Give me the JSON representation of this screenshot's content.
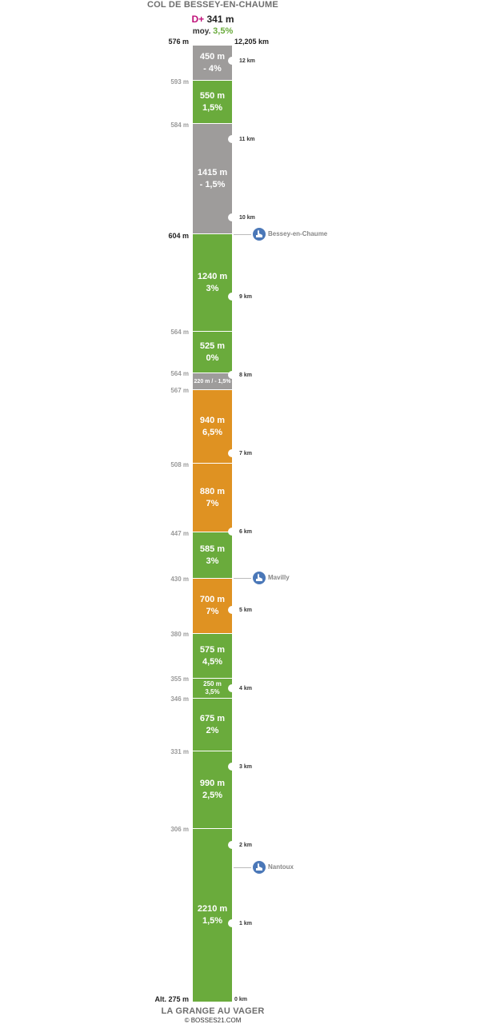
{
  "header": {
    "title": "COL DE BESSEY-EN-CHAUME",
    "dplus_prefix": "D+",
    "dplus_value": "341 m",
    "avg_prefix": "moy.",
    "avg_value": "3,5%",
    "top_altitude": "576 m",
    "total_distance": "12,205 km"
  },
  "footer": {
    "title": "LA GRANGE AU VAGER",
    "copyright": "© BOSSES21.COM",
    "start_altitude": "Alt. 275 m"
  },
  "colors": {
    "green": "#6aab3c",
    "orange": "#df9222",
    "gray": "#9e9c9b",
    "accent_magenta": "#c0127a",
    "village_blue": "#4b78b8"
  },
  "segments": [
    {
      "label": "450 m\n- 4%",
      "color": "gray",
      "size": "normal"
    },
    {
      "label": "550 m\n1,5%",
      "color": "green",
      "size": "normal"
    },
    {
      "label": "1415 m\n- 1,5%",
      "color": "gray",
      "size": "normal"
    },
    {
      "label": "1240 m\n3%",
      "color": "green",
      "size": "normal"
    },
    {
      "label": "525 m\n0%",
      "color": "green",
      "size": "normal"
    },
    {
      "label": "220 m / - 1,5%",
      "color": "gray",
      "size": "tiny"
    },
    {
      "label": "940 m\n6,5%",
      "color": "orange",
      "size": "normal"
    },
    {
      "label": "880 m\n7%",
      "color": "orange",
      "size": "normal"
    },
    {
      "label": "585 m\n3%",
      "color": "green",
      "size": "normal"
    },
    {
      "label": "700 m\n7%",
      "color": "orange",
      "size": "normal"
    },
    {
      "label": "575 m\n4,5%",
      "color": "green",
      "size": "normal"
    },
    {
      "label": "250 m\n3,5%",
      "color": "green",
      "size": "small"
    },
    {
      "label": "675 m\n2%",
      "color": "green",
      "size": "normal"
    },
    {
      "label": "990 m\n2,5%",
      "color": "green",
      "size": "normal"
    },
    {
      "label": "2210 m\n1,5%",
      "color": "green",
      "size": "normal"
    }
  ],
  "altitudes": [
    "593 m",
    "584 m",
    "604 m",
    "564 m",
    "564 m",
    "567 m",
    "508 m",
    "447 m",
    "430 m",
    "380 m",
    "355 m",
    "346 m",
    "331 m",
    "306 m"
  ],
  "km_markers": [
    "12 km",
    "11 km",
    "10 km",
    "9 km",
    "8 km",
    "7 km",
    "6 km",
    "5 km",
    "4 km",
    "3 km",
    "2 km",
    "1 km",
    "0 km"
  ],
  "villages": [
    {
      "name": "Bessey-en-Chaume"
    },
    {
      "name": "Mavilly"
    },
    {
      "name": "Nantoux"
    }
  ]
}
